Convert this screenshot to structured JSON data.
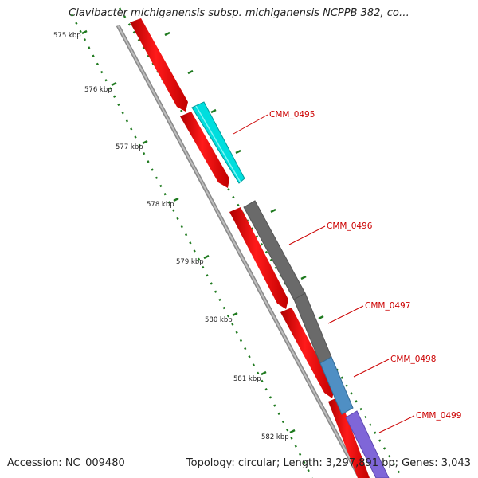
{
  "title": "Clavibacter michiganensis subsp. michiganensis NCPPB 382, co…",
  "footer": {
    "accession": "Accession: NC_009480",
    "summary": "Topology: circular; Length: 3,297,891 bp; Genes: 3,043"
  },
  "ticks": [
    "575 kbp",
    "576 kbp",
    "577 kbp",
    "578 kbp",
    "579 kbp",
    "580 kbp",
    "581 kbp",
    "582 kbp"
  ],
  "genes": [
    {
      "label": "CMM_0495",
      "color": "#00e5e5"
    },
    {
      "label": "CMM_0496",
      "color": "#6f6f6f"
    },
    {
      "label": "CMM_0497",
      "color": "#6f6f6f"
    },
    {
      "label": "CMM_0498",
      "color": "#4f8fc4"
    },
    {
      "label": "CMM_0499",
      "color": "#7f66d8"
    }
  ],
  "colors": {
    "cds": "#ff0000",
    "backbone": "#8a8a8a",
    "ticks": "#1f7a1f",
    "label": "#cc0000"
  }
}
